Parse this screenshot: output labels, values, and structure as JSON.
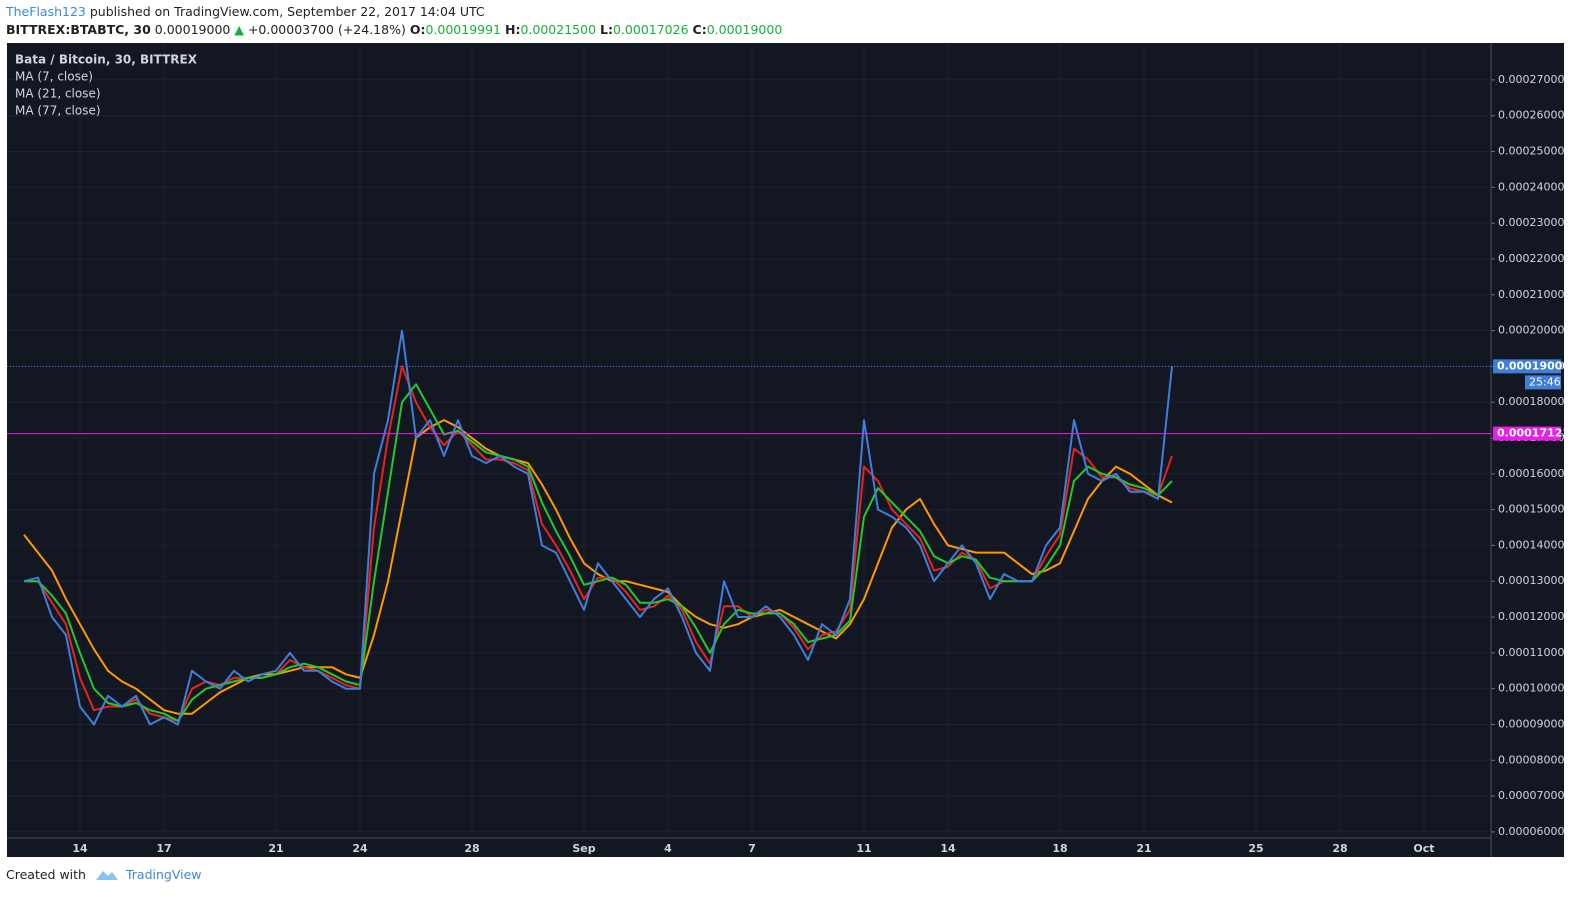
{
  "header": {
    "author": "TheFlash123",
    "published": "published on TradingView.com, September 22, 2017 14:04 UTC",
    "symbol": "BITTREX:BTABTC, 30",
    "last": "0.00019000",
    "arrow": "▲",
    "change": "+0.00003700 (+24.18%)",
    "o_label": "O:",
    "open": "0.00019991",
    "h_label": "H:",
    "high": "0.00021500",
    "l_label": "L:",
    "low": "0.00017026",
    "c_label": "C:",
    "close": "0.00019000"
  },
  "chart_data": {
    "type": "line",
    "title": "Bata / Bitcoin, 30, BITTREX",
    "background": "#131722",
    "grid": true,
    "categories": [
      null,
      null,
      null,
      null,
      "14",
      null,
      null,
      null,
      null,
      null,
      "17",
      null,
      null,
      null,
      null,
      null,
      null,
      null,
      "21",
      null,
      null,
      null,
      null,
      null,
      "24",
      null,
      null,
      null,
      null,
      null,
      null,
      null,
      "28",
      null,
      null,
      null,
      null,
      null,
      null,
      null,
      "Sep",
      null,
      null,
      null,
      null,
      null,
      "4",
      null,
      null,
      null,
      null,
      null,
      "7",
      null,
      null,
      null,
      null,
      null,
      null,
      null,
      "11",
      null,
      null,
      null,
      null,
      null,
      "14",
      null,
      null,
      null,
      null,
      null,
      null,
      null,
      "18",
      null,
      null,
      null,
      null,
      null,
      "21",
      null,
      null,
      null,
      null,
      null,
      null,
      null,
      "25",
      null,
      null,
      null,
      null,
      null,
      "28",
      null,
      null,
      null,
      null,
      null,
      "Oct",
      null,
      null,
      null,
      null
    ],
    "series": [
      {
        "name": "MA (77, close)",
        "color": "#ff9800",
        "values": [
          0.000143,
          0.000138,
          0.000133,
          0.000125,
          0.000118,
          0.000111,
          0.000105,
          0.000102,
          0.0001,
          9.7e-05,
          9.4e-05,
          9.3e-05,
          9.3e-05,
          9.6e-05,
          9.9e-05,
          0.000101,
          0.000103,
          0.000104,
          0.000104,
          0.000105,
          0.000106,
          0.000106,
          0.000106,
          0.000104,
          0.000103,
          0.000115,
          0.00013,
          0.00015,
          0.00017,
          0.000173,
          0.000175,
          0.000173,
          0.00017,
          0.000167,
          0.000165,
          0.000164,
          0.000163,
          0.000157,
          0.00015,
          0.000142,
          0.000135,
          0.000132,
          0.00013,
          0.00013,
          0.000129,
          0.000128,
          0.000127,
          0.000123,
          0.00012,
          0.000118,
          0.000117,
          0.000118,
          0.00012,
          0.000121,
          0.000122,
          0.00012,
          0.000118,
          0.000116,
          0.000114,
          0.000118,
          0.000125,
          0.000135,
          0.000145,
          0.00015,
          0.000153,
          0.000146,
          0.00014,
          0.000139,
          0.000138,
          0.000138,
          0.000138,
          0.000135,
          0.000132,
          0.000133,
          0.000135,
          0.000144,
          0.000153,
          0.000158,
          0.000162,
          0.00016,
          0.000157,
          0.000154,
          0.000152,
          null,
          null,
          null,
          null,
          null,
          null,
          null,
          null,
          null,
          null,
          null,
          null,
          null,
          null,
          null,
          null,
          null,
          null,
          null,
          null,
          null,
          null
        ]
      },
      {
        "name": "MA (7, close)",
        "color": "#e8231c",
        "values": [
          0.00013,
          0.00013,
          0.000124,
          0.000118,
          0.000103,
          9.4e-05,
          9.5e-05,
          9.5e-05,
          9.7e-05,
          9.3e-05,
          9.2e-05,
          9.1e-05,
          0.0001,
          0.000102,
          0.000101,
          0.000103,
          0.000103,
          0.000103,
          0.000104,
          0.000108,
          0.000106,
          0.000105,
          0.000103,
          0.000101,
          0.0001,
          0.000145,
          0.00017,
          0.00019,
          0.00018,
          0.000173,
          0.000168,
          0.000172,
          0.000168,
          0.000164,
          0.000164,
          0.000163,
          0.000161,
          0.000146,
          0.00014,
          0.000133,
          0.000125,
          0.000131,
          0.000131,
          0.000127,
          0.000122,
          0.000123,
          0.000126,
          0.000122,
          0.000113,
          0.000107,
          0.000123,
          0.000123,
          0.00012,
          0.000122,
          0.000121,
          0.000117,
          0.000111,
          0.000115,
          0.000116,
          0.000122,
          0.000162,
          0.000158,
          0.00015,
          0.000146,
          0.000142,
          0.000133,
          0.000134,
          0.000138,
          0.000136,
          0.000128,
          0.00013,
          0.00013,
          0.00013,
          0.000137,
          0.000143,
          0.000167,
          0.000164,
          0.000159,
          0.000159,
          0.000156,
          0.000155,
          0.000154,
          0.000165,
          null,
          null,
          null,
          null,
          null,
          null,
          null,
          null,
          null,
          null,
          null,
          null,
          null,
          null,
          null,
          null,
          null,
          null,
          null,
          null,
          null,
          null
        ]
      },
      {
        "name": "MA (21, close)",
        "color": "#22c92b",
        "values": [
          0.00013,
          0.00013,
          0.000126,
          0.000121,
          0.00011,
          0.0001,
          9.6e-05,
          9.5e-05,
          9.6e-05,
          9.4e-05,
          9.3e-05,
          9.1e-05,
          9.7e-05,
          0.0001,
          0.000101,
          0.000102,
          0.000103,
          0.000103,
          0.000104,
          0.000106,
          0.000107,
          0.000106,
          0.000104,
          0.000102,
          0.000101,
          0.00013,
          0.000155,
          0.00018,
          0.000185,
          0.000178,
          0.000171,
          0.000172,
          0.000169,
          0.000166,
          0.000165,
          0.000164,
          0.000162,
          0.000152,
          0.000144,
          0.000137,
          0.000129,
          0.00013,
          0.000131,
          0.000129,
          0.000124,
          0.000124,
          0.000125,
          0.000123,
          0.000117,
          0.00011,
          0.000118,
          0.000122,
          0.000121,
          0.000121,
          0.000121,
          0.000118,
          0.000113,
          0.000114,
          0.000115,
          0.000119,
          0.000148,
          0.000156,
          0.000152,
          0.000148,
          0.000144,
          0.000137,
          0.000135,
          0.000137,
          0.000136,
          0.000131,
          0.00013,
          0.00013,
          0.00013,
          0.000134,
          0.00014,
          0.000158,
          0.000162,
          0.00016,
          0.000159,
          0.000157,
          0.000156,
          0.000154,
          0.000158,
          null,
          null,
          null,
          null,
          null,
          null,
          null,
          null,
          null,
          null,
          null,
          null,
          null,
          null,
          null,
          null,
          null,
          null,
          null,
          null,
          null,
          null
        ]
      },
      {
        "color": "#3f7fdc",
        "values": [
          0.00013,
          0.000131,
          0.00012,
          0.000115,
          9.5e-05,
          9e-05,
          9.8e-05,
          9.5e-05,
          9.8e-05,
          9e-05,
          9.2e-05,
          9e-05,
          0.000105,
          0.000102,
          0.0001,
          0.000105,
          0.000102,
          0.000104,
          0.000105,
          0.00011,
          0.000105,
          0.000105,
          0.000102,
          0.0001,
          0.0001,
          0.00016,
          0.000175,
          0.0002,
          0.00017,
          0.000175,
          0.000165,
          0.000175,
          0.000165,
          0.000163,
          0.000165,
          0.000162,
          0.00016,
          0.00014,
          0.000138,
          0.00013,
          0.000122,
          0.000135,
          0.00013,
          0.000125,
          0.00012,
          0.000125,
          0.000128,
          0.00012,
          0.00011,
          0.000105,
          0.00013,
          0.00012,
          0.00012,
          0.000123,
          0.00012,
          0.000115,
          0.000108,
          0.000118,
          0.000115,
          0.000125,
          0.000175,
          0.00015,
          0.000148,
          0.000145,
          0.00014,
          0.00013,
          0.000135,
          0.00014,
          0.000135,
          0.000125,
          0.000132,
          0.00013,
          0.00013,
          0.00014,
          0.000145,
          0.000175,
          0.00016,
          0.000158,
          0.00016,
          0.000155,
          0.000155,
          0.000153,
          0.00019,
          null,
          null,
          null,
          null,
          null,
          null,
          null,
          null,
          null,
          null,
          null,
          null,
          null,
          null,
          null,
          null,
          null,
          null,
          null,
          null,
          null,
          null
        ]
      }
    ],
    "ylim": [
      5.83e-05,
      0.0002803
    ],
    "yticks": [
      {
        "value": 6e-05,
        "label": "0.00006000"
      },
      {
        "value": 7e-05,
        "label": "0.00007000"
      },
      {
        "value": 8e-05,
        "label": "0.00008000"
      },
      {
        "value": 9e-05,
        "label": "0.00009000"
      },
      {
        "value": 0.0001,
        "label": "0.00010000"
      },
      {
        "value": 0.00011,
        "label": "0.00011000"
      },
      {
        "value": 0.00012,
        "label": "0.00012000"
      },
      {
        "value": 0.00013,
        "label": "0.00013000"
      },
      {
        "value": 0.00014,
        "label": "0.00014000"
      },
      {
        "value": 0.00015,
        "label": "0.00015000"
      },
      {
        "value": 0.00016,
        "label": "0.00016000"
      },
      {
        "value": 0.00017,
        "label": "0.00017000"
      },
      {
        "value": 0.00018,
        "label": "0.00018000"
      },
      {
        "value": 0.00019,
        "label": "0.00019000"
      },
      {
        "value": 0.0002,
        "label": "0.00020000"
      },
      {
        "value": 0.00021,
        "label": "0.00021000"
      },
      {
        "value": 0.00022,
        "label": "0.00022000"
      },
      {
        "value": 0.00023,
        "label": "0.00023000"
      },
      {
        "value": 0.00024,
        "label": "0.00024000"
      },
      {
        "value": 0.00025,
        "label": "0.00025000"
      },
      {
        "value": 0.00026,
        "label": "0.00026000"
      },
      {
        "value": 0.00027,
        "label": "0.00027000"
      }
    ],
    "price_line": {
      "value": 0.00019,
      "label": "0.00019000",
      "color": "#3f7fdc"
    },
    "countdown": "25:46",
    "horizontal_line": {
      "value": 0.00017123,
      "label": "0.00017123",
      "color": "#e91ee8"
    }
  },
  "footer": {
    "created": "Created with",
    "brand": "TradingView"
  }
}
